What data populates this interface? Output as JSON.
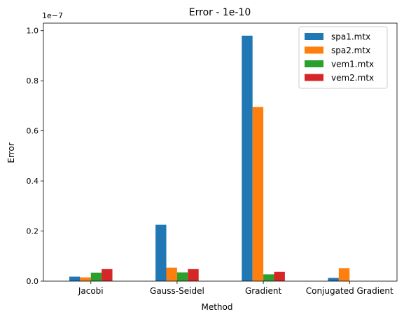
{
  "chart_data": {
    "type": "bar",
    "title": "Error - 1e-10",
    "xlabel": "Method",
    "ylabel": "Error",
    "y_offset_label": "1e−7",
    "categories": [
      "Jacobi",
      "Gauss-Seidel",
      "Gradient",
      "Conjugated Gradient"
    ],
    "series": [
      {
        "name": "spa1.mtx",
        "color": "#1f77b4",
        "values": [
          1.8e-09,
          2.25e-08,
          9.8e-08,
          1.3e-09
        ]
      },
      {
        "name": "spa2.mtx",
        "color": "#ff7f0e",
        "values": [
          1.5e-09,
          5.4e-09,
          6.95e-08,
          5.2e-09
        ]
      },
      {
        "name": "vem1.mtx",
        "color": "#2ca02c",
        "values": [
          3.4e-09,
          3.5e-09,
          2.7e-09,
          0
        ]
      },
      {
        "name": "vem2.mtx",
        "color": "#d62728",
        "values": [
          4.8e-09,
          4.8e-09,
          3.7e-09,
          0
        ]
      }
    ],
    "ylim": [
      0,
      1.03e-07
    ],
    "yticks": [
      0,
      2e-08,
      4e-08,
      6e-08,
      8e-08,
      1e-07
    ],
    "ytick_labels": [
      "0.0",
      "0.2",
      "0.4",
      "0.6",
      "0.8",
      "1.0"
    ],
    "grid": false,
    "legend_position": "top-right"
  }
}
